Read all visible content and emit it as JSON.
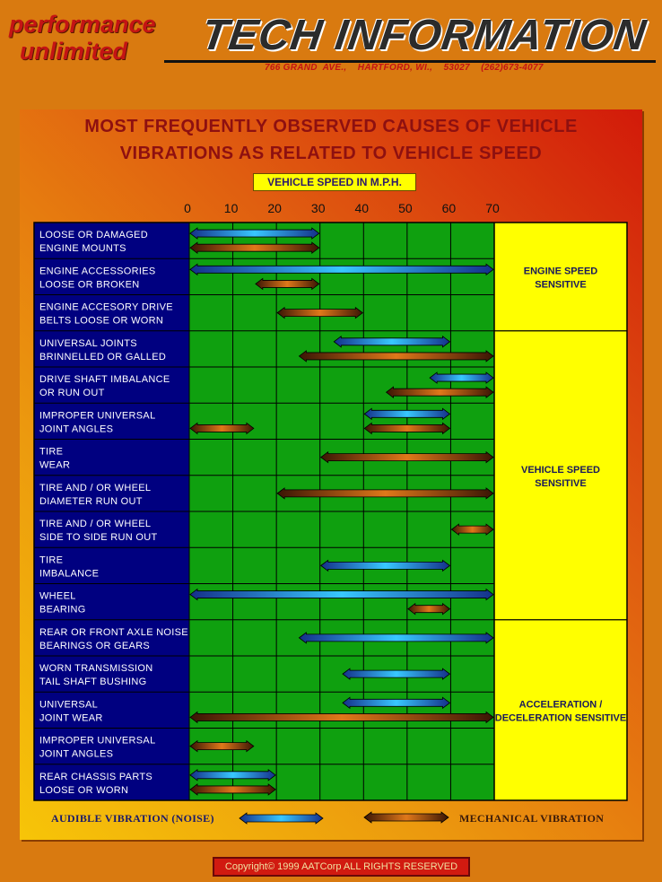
{
  "header": {
    "brand_line1": "performance",
    "brand_line2": "unlimited",
    "title": "TECH INFORMATION",
    "address": "766 GRAND  AVE.,    HARTFORD, WI.,    53027    (262)673-4077"
  },
  "chart_data": {
    "type": "range-bar",
    "title_line1": "MOST FREQUENTLY OBSERVED CAUSES OF VEHICLE",
    "title_line2": "VIBRATIONS AS RELATED TO VEHICLE SPEED",
    "xlabel": "VEHICLE SPEED IN M.P.H.",
    "xlim": [
      0,
      70
    ],
    "xticks": [
      0,
      10,
      20,
      30,
      40,
      50,
      60,
      70
    ],
    "grid": true,
    "rows": [
      {
        "line1": "LOOSE OR DAMAGED",
        "line2": "ENGINE MOUNTS",
        "ranges": [
          {
            "kind": "audible",
            "from": 0,
            "to": 30
          },
          {
            "kind": "mechanical",
            "from": 0,
            "to": 30
          }
        ]
      },
      {
        "line1": "ENGINE ACCESSORIES",
        "line2": "LOOSE OR BROKEN",
        "ranges": [
          {
            "kind": "audible",
            "from": 0,
            "to": 70
          },
          {
            "kind": "mechanical",
            "from": 15,
            "to": 30
          }
        ]
      },
      {
        "line1": "ENGINE ACCESORY DRIVE",
        "line2": "BELTS LOOSE OR WORN",
        "ranges": [
          {
            "kind": "mechanical",
            "from": 20,
            "to": 40
          }
        ]
      },
      {
        "line1": "UNIVERSAL JOINTS",
        "line2": "BRINNELLED OR GALLED",
        "ranges": [
          {
            "kind": "audible",
            "from": 33,
            "to": 60
          },
          {
            "kind": "mechanical",
            "from": 25,
            "to": 70
          }
        ]
      },
      {
        "line1": "DRIVE SHAFT IMBALANCE",
        "line2": "OR RUN OUT",
        "ranges": [
          {
            "kind": "audible",
            "from": 55,
            "to": 70
          },
          {
            "kind": "mechanical",
            "from": 45,
            "to": 70
          }
        ]
      },
      {
        "line1": "IMPROPER UNIVERSAL",
        "line2": "JOINT ANGLES",
        "ranges": [
          {
            "kind": "audible",
            "from": 40,
            "to": 60
          },
          {
            "kind": "mechanical",
            "from": 0,
            "to": 15
          },
          {
            "kind": "mechanical",
            "from": 40,
            "to": 60
          }
        ]
      },
      {
        "line1": "TIRE",
        "line2": "WEAR",
        "ranges": [
          {
            "kind": "mechanical",
            "from": 30,
            "to": 70
          }
        ]
      },
      {
        "line1": "TIRE AND / OR WHEEL",
        "line2": "DIAMETER RUN OUT",
        "ranges": [
          {
            "kind": "mechanical",
            "from": 20,
            "to": 70
          }
        ]
      },
      {
        "line1": "TIRE AND / OR WHEEL",
        "line2": "SIDE TO SIDE RUN OUT",
        "ranges": [
          {
            "kind": "mechanical",
            "from": 60,
            "to": 70
          }
        ]
      },
      {
        "line1": "TIRE",
        "line2": "IMBALANCE",
        "ranges": [
          {
            "kind": "audible",
            "from": 30,
            "to": 60
          }
        ]
      },
      {
        "line1": "WHEEL",
        "line2": "BEARING",
        "ranges": [
          {
            "kind": "audible",
            "from": 0,
            "to": 70
          },
          {
            "kind": "mechanical",
            "from": 50,
            "to": 60
          }
        ]
      },
      {
        "line1": "REAR OR FRONT AXLE NOISE",
        "line2": "BEARINGS OR GEARS",
        "ranges": [
          {
            "kind": "audible",
            "from": 25,
            "to": 70
          }
        ]
      },
      {
        "line1": "WORN TRANSMISSION",
        "line2": "TAIL SHAFT BUSHING",
        "ranges": [
          {
            "kind": "audible",
            "from": 35,
            "to": 60
          }
        ]
      },
      {
        "line1": "UNIVERSAL",
        "line2": "JOINT WEAR",
        "ranges": [
          {
            "kind": "audible",
            "from": 35,
            "to": 60
          },
          {
            "kind": "mechanical",
            "from": 0,
            "to": 70
          }
        ]
      },
      {
        "line1": "IMPROPER UNIVERSAL",
        "line2": "JOINT ANGLES",
        "ranges": [
          {
            "kind": "mechanical",
            "from": 0,
            "to": 15
          }
        ]
      },
      {
        "line1": "REAR CHASSIS PARTS",
        "line2": "LOOSE OR WORN",
        "ranges": [
          {
            "kind": "audible",
            "from": 0,
            "to": 20
          },
          {
            "kind": "mechanical",
            "from": 0,
            "to": 20
          }
        ]
      }
    ],
    "groups": [
      {
        "line1": "ENGINE SPEED",
        "line2": "SENSITIVE",
        "first_row": 0,
        "last_row": 2
      },
      {
        "line1": "VEHICLE SPEED",
        "line2": "SENSITIVE",
        "first_row": 3,
        "last_row": 10
      },
      {
        "line1": "ACCELERATION /",
        "line2": "DECELERATION SENSITIVE",
        "first_row": 11,
        "last_row": 15
      }
    ],
    "legend": {
      "audible": "AUDIBLE VIBRATION (NOISE)",
      "mechanical": "MECHANICAL VIBRATION"
    }
  },
  "colors": {
    "plot_bg": "#0fa00f",
    "label_bg": "#000080",
    "group_bg": "#ffff00",
    "audible_center": "#38c8ff",
    "audible_edge": "#15308a",
    "mechanical_center": "#e0781a",
    "mechanical_edge": "#3a1505"
  },
  "footer": {
    "copyright": "Copyright© 1999 AATCorp ALL RIGHTS RESERVED"
  }
}
